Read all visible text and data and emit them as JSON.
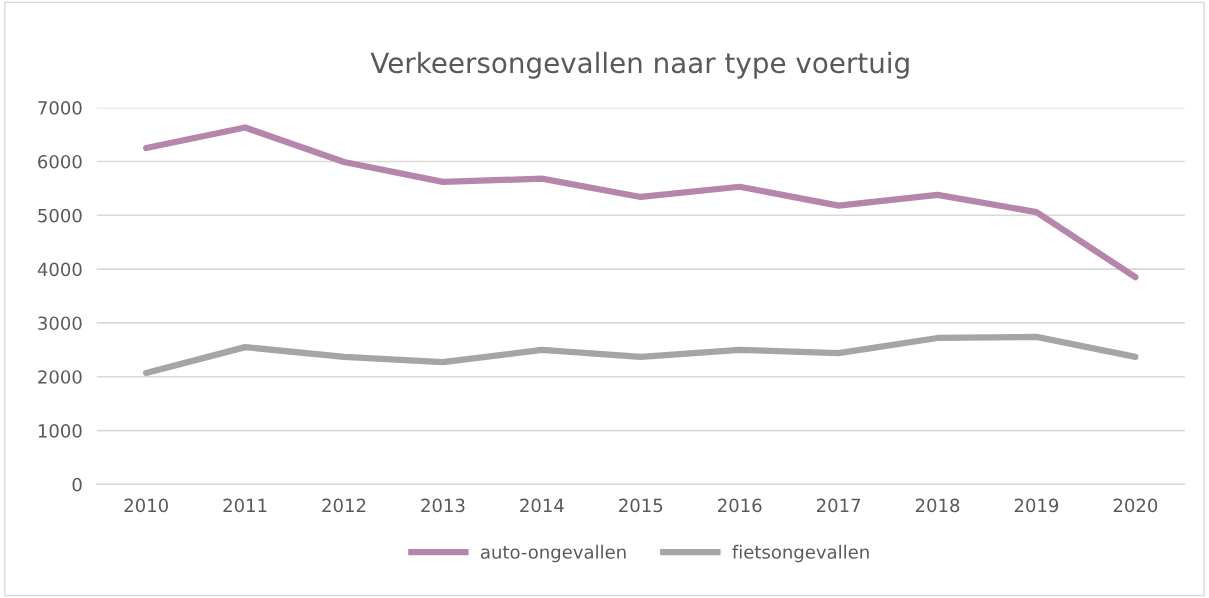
{
  "chart_data": {
    "type": "line",
    "title": "Verkeersongevallen naar type voertuig",
    "categories": [
      "2010",
      "2011",
      "2012",
      "2013",
      "2014",
      "2015",
      "2016",
      "2017",
      "2018",
      "2019",
      "2020"
    ],
    "series": [
      {
        "name": "auto-ongevallen",
        "color": "#b685ab",
        "values": [
          6250,
          6630,
          5990,
          5620,
          5680,
          5340,
          5530,
          5180,
          5380,
          5060,
          3850
        ]
      },
      {
        "name": "fietsongevallen",
        "color": "#a5a5a5",
        "values": [
          2070,
          2550,
          2370,
          2270,
          2500,
          2370,
          2500,
          2440,
          2720,
          2740,
          2370
        ]
      }
    ],
    "ylim": [
      0,
      7000
    ],
    "yticks": [
      0,
      1000,
      2000,
      3000,
      4000,
      5000,
      6000,
      7000
    ],
    "grid": "y",
    "legend": "bottom",
    "marker": "none",
    "line_style": "solid"
  }
}
